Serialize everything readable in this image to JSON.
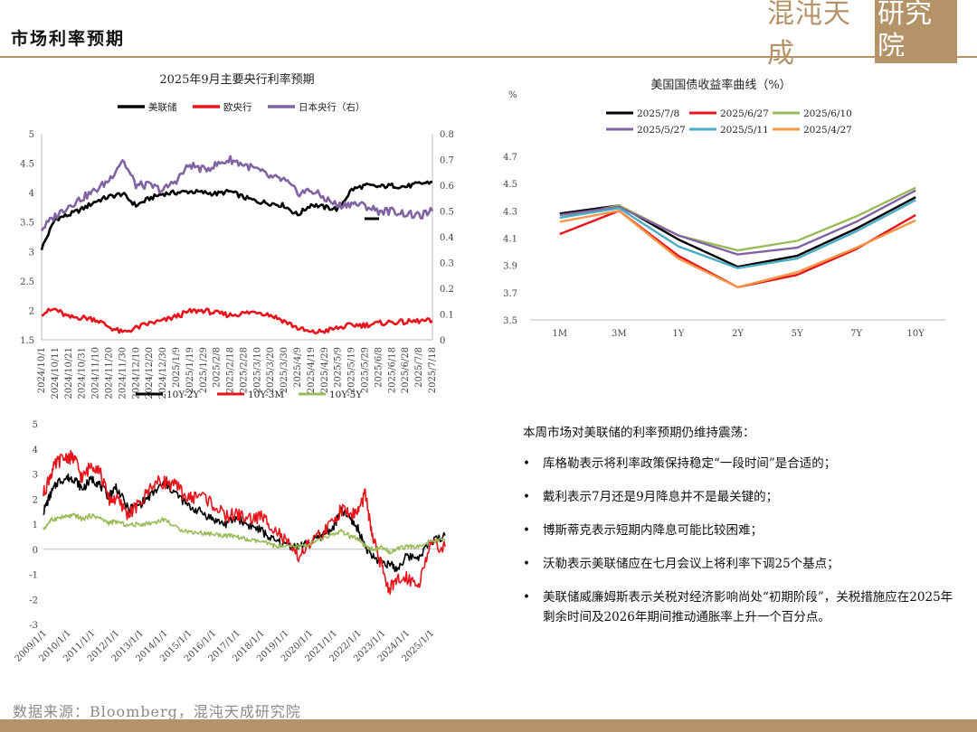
{
  "page": {
    "title": "市场利率预期",
    "logo_text": "混沌天成",
    "logo_box_text": "研究院",
    "source": "数据来源：Bloomberg，混沌天成研究院"
  },
  "colors": {
    "brand": "#b49368"
  },
  "chart_data": [
    {
      "type": "line",
      "title": "2025年9月主要央行利率预期",
      "y_left_ticks": [
        "5",
        "4.5",
        "4",
        "3.5",
        "3",
        "2.5",
        "2",
        "1.5"
      ],
      "y_right_ticks": [
        "0.8",
        "0.7",
        "0.6",
        "0.5",
        "0.4",
        "0.3",
        "0.2",
        "0.1",
        "0"
      ],
      "ylim_left": [
        1.5,
        5
      ],
      "ylim_right": [
        0,
        0.8
      ],
      "x_labels": [
        "2024/10/1",
        "2024/10/11",
        "2024/10/21",
        "2024/10/31",
        "2024/11/10",
        "2024/11/20",
        "2024/11/30",
        "2024/12/10",
        "2024/12/20",
        "2024/12/30",
        "2025/1/9",
        "2025/1/19",
        "2025/1/29",
        "2025/2/8",
        "2025/2/18",
        "2025/2/28",
        "2025/3/10",
        "2025/3/20",
        "2025/3/30",
        "2025/4/9",
        "2025/4/19",
        "2025/4/29",
        "2025/5/9",
        "2025/5/19",
        "2025/5/29",
        "2025/6/8",
        "2025/6/18",
        "2025/6/28",
        "2025/7/8",
        "2025/7/18"
      ],
      "series": [
        {
          "name": "美联储",
          "color": "#000000",
          "axis": "left",
          "values": [
            3.05,
            3.55,
            3.62,
            3.72,
            3.85,
            3.93,
            3.98,
            3.78,
            3.9,
            3.98,
            4.0,
            4.02,
            4.0,
            3.98,
            4.02,
            3.92,
            3.85,
            3.82,
            3.78,
            3.62,
            3.8,
            3.75,
            3.72,
            4.05,
            4.12,
            4.1,
            4.12,
            4.1,
            4.15,
            4.18
          ]
        },
        {
          "name": "欧央行",
          "color": "#e8141b",
          "axis": "left",
          "values": [
            1.95,
            2.02,
            1.88,
            1.88,
            1.85,
            1.72,
            1.62,
            1.7,
            1.78,
            1.82,
            1.9,
            1.98,
            2.0,
            1.95,
            1.92,
            1.95,
            1.98,
            1.92,
            1.82,
            1.7,
            1.62,
            1.65,
            1.7,
            1.75,
            1.75,
            1.78,
            1.8,
            1.8,
            1.82,
            1.82
          ]
        },
        {
          "name": "日本央行（右）",
          "color": "#8064a2",
          "axis": "right",
          "values": [
            0.43,
            0.48,
            0.52,
            0.55,
            0.58,
            0.62,
            0.7,
            0.6,
            0.6,
            0.58,
            0.62,
            0.68,
            0.66,
            0.68,
            0.7,
            0.68,
            0.66,
            0.63,
            0.62,
            0.57,
            0.58,
            0.55,
            0.52,
            0.53,
            0.52,
            0.5,
            0.5,
            0.49,
            0.48,
            0.5
          ]
        }
      ],
      "annotation": {
        "label": "",
        "x_index": 24.5,
        "value_right": 0.47
      }
    },
    {
      "type": "line",
      "title": "美国国债收益率曲线（%）",
      "ylabel": "%",
      "categories": [
        "1M",
        "3M",
        "1Y",
        "2Y",
        "5Y",
        "7Y",
        "10Y"
      ],
      "ylim": [
        3.5,
        4.7
      ],
      "y_ticks": [
        "4.7",
        "4.5",
        "4.3",
        "4.1",
        "3.9",
        "3.7",
        "3.5"
      ],
      "series": [
        {
          "name": "2025/7/8",
          "color": "#000000",
          "values": [
            4.28,
            4.34,
            4.09,
            3.89,
            3.97,
            4.17,
            4.4
          ]
        },
        {
          "name": "2025/6/27",
          "color": "#e8141b",
          "values": [
            4.13,
            4.3,
            3.97,
            3.74,
            3.83,
            4.02,
            4.27
          ]
        },
        {
          "name": "2025/6/10",
          "color": "#9bbb59",
          "values": [
            4.25,
            4.34,
            4.12,
            4.01,
            4.08,
            4.26,
            4.47
          ]
        },
        {
          "name": "2025/5/27",
          "color": "#8064a2",
          "values": [
            4.27,
            4.33,
            4.12,
            3.98,
            4.03,
            4.22,
            4.45
          ]
        },
        {
          "name": "2025/5/11",
          "color": "#4bacc6",
          "values": [
            4.25,
            4.32,
            4.04,
            3.88,
            3.95,
            4.15,
            4.38
          ]
        },
        {
          "name": "2025/4/27",
          "color": "#f79646",
          "values": [
            4.22,
            4.3,
            3.95,
            3.74,
            3.85,
            4.03,
            4.23
          ]
        }
      ]
    },
    {
      "type": "line",
      "title": "",
      "ylim": [
        -3,
        5
      ],
      "y_ticks": [
        "5",
        "4",
        "3",
        "2",
        "1",
        "0",
        "-1",
        "-2",
        "-3"
      ],
      "x_labels": [
        "2009/1/1",
        "2010/1/1",
        "2011/1/1",
        "2012/1/1",
        "2013/1/1",
        "2014/1/1",
        "2015/1/1",
        "2016/1/1",
        "2017/1/1",
        "2018/1/1",
        "2019/1/1",
        "2020/1/1",
        "2021/1/1",
        "2022/1/1",
        "2023/1/1",
        "2024/1/1",
        "2025/1/1"
      ],
      "x_start_year": 2009,
      "x_end_year": 2025.6,
      "series": [
        {
          "name": "10Y-2Y",
          "color": "#000000",
          "x": [
            2009.0,
            2009.3,
            2009.6,
            2010.0,
            2010.3,
            2010.6,
            2011.0,
            2011.3,
            2011.7,
            2012.0,
            2012.5,
            2013.0,
            2013.5,
            2014.0,
            2014.5,
            2015.0,
            2015.5,
            2016.0,
            2016.5,
            2017.0,
            2017.5,
            2018.0,
            2018.5,
            2019.0,
            2019.5,
            2020.0,
            2020.5,
            2021.0,
            2021.3,
            2021.7,
            2022.0,
            2022.3,
            2022.6,
            2023.0,
            2023.3,
            2023.6,
            2024.0,
            2024.5,
            2025.0,
            2025.6
          ],
          "values": [
            1.5,
            2.2,
            2.7,
            2.85,
            2.8,
            2.4,
            2.8,
            2.6,
            2.1,
            2.5,
            1.6,
            1.8,
            2.2,
            2.65,
            2.2,
            1.7,
            1.5,
            1.2,
            1.0,
            1.25,
            0.95,
            0.75,
            0.35,
            0.2,
            0.1,
            0.25,
            0.55,
            0.9,
            1.55,
            1.2,
            0.8,
            0.1,
            -0.3,
            -0.5,
            -0.6,
            -0.8,
            -0.3,
            -0.3,
            0.3,
            0.55
          ]
        },
        {
          "name": "10Y-3M",
          "color": "#e8141b",
          "x": [
            2009.0,
            2009.3,
            2009.6,
            2010.0,
            2010.3,
            2010.6,
            2011.0,
            2011.3,
            2011.7,
            2012.0,
            2012.5,
            2013.0,
            2013.5,
            2014.0,
            2014.5,
            2015.0,
            2015.5,
            2016.0,
            2016.5,
            2017.0,
            2017.5,
            2018.0,
            2018.5,
            2019.0,
            2019.5,
            2020.0,
            2020.5,
            2021.0,
            2021.3,
            2021.7,
            2022.0,
            2022.3,
            2022.6,
            2023.0,
            2023.3,
            2023.6,
            2024.0,
            2024.5,
            2025.0,
            2025.6
          ],
          "values": [
            2.2,
            3.0,
            3.5,
            3.7,
            3.6,
            2.8,
            3.4,
            3.2,
            2.0,
            2.0,
            1.4,
            1.8,
            2.6,
            2.7,
            2.5,
            2.0,
            2.2,
            1.8,
            1.3,
            1.4,
            1.2,
            1.3,
            0.9,
            0.3,
            -0.3,
            0.2,
            0.6,
            1.1,
            1.6,
            1.4,
            1.5,
            2.2,
            0.5,
            -0.8,
            -1.6,
            -1.3,
            -1.1,
            -1.4,
            0.2,
            0.1
          ]
        },
        {
          "name": "10Y-5Y",
          "color": "#9bbb59",
          "x": [
            2009.0,
            2009.3,
            2009.6,
            2010.0,
            2010.3,
            2010.6,
            2011.0,
            2011.3,
            2011.7,
            2012.0,
            2012.5,
            2013.0,
            2013.5,
            2014.0,
            2014.5,
            2015.0,
            2015.5,
            2016.0,
            2016.5,
            2017.0,
            2017.5,
            2018.0,
            2018.5,
            2019.0,
            2019.5,
            2020.0,
            2020.5,
            2021.0,
            2021.3,
            2021.7,
            2022.0,
            2022.3,
            2022.6,
            2023.0,
            2023.3,
            2023.6,
            2024.0,
            2024.5,
            2025.0,
            2025.6
          ],
          "values": [
            0.8,
            1.15,
            1.25,
            1.3,
            1.35,
            1.2,
            1.35,
            1.25,
            1.05,
            1.1,
            0.95,
            1.0,
            1.05,
            1.2,
            0.85,
            0.7,
            0.65,
            0.6,
            0.55,
            0.5,
            0.35,
            0.3,
            0.15,
            0.1,
            0.1,
            0.2,
            0.4,
            0.6,
            0.7,
            0.5,
            0.4,
            0.1,
            0.0,
            0.05,
            -0.1,
            0.0,
            0.1,
            0.1,
            0.3,
            0.4
          ]
        }
      ]
    }
  ],
  "commentary": {
    "intro": "本周市场对美联储的利率预期仍维持震荡：",
    "bullets": [
      "库格勒表示将利率政策保持稳定“一段时间”是合适的；",
      "戴利表示7月还是9月降息并不是最关键的；",
      "博斯蒂克表示短期内降息可能比较困难；",
      "沃勒表示美联储应在七月会议上将利率下调25个基点；",
      "美联储威廉姆斯表示关税对经济影响尚处“初期阶段”，关税措施应在2025年剩余时间及2026年期间推动通胀率上升一个百分点。"
    ]
  }
}
